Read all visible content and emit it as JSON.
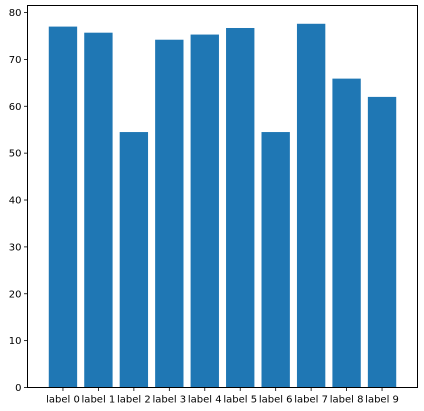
{
  "chart_data": {
    "type": "bar",
    "categories": [
      "label 0",
      "label 1",
      "label 2",
      "label 3",
      "label 4",
      "label 5",
      "label 6",
      "label 7",
      "label 8",
      "label 9"
    ],
    "values": [
      77.0,
      75.7,
      54.5,
      74.2,
      75.3,
      76.7,
      54.5,
      77.6,
      65.9,
      62.0
    ],
    "ylim": [
      0,
      81.5
    ],
    "yticks": [
      0,
      10,
      20,
      30,
      40,
      50,
      60,
      70,
      80
    ],
    "grid": false,
    "colors": {
      "bar": "#1f77b4",
      "axis": "#000000",
      "background": "#ffffff"
    }
  }
}
